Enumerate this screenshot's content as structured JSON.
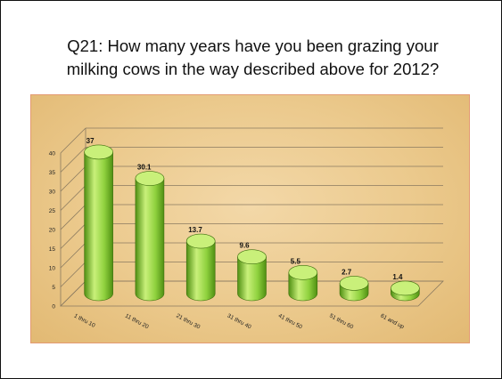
{
  "title": {
    "line1": "Q21: How many years have you been grazing your",
    "line2": "milking cows in the way described above for 2012?"
  },
  "colors": {
    "bar_light": "#c9f07a",
    "bar_mid": "#8fd13e",
    "bar_dark": "#4f8f12",
    "panel_border": "#e39a72",
    "panel_bg": "#ebc98c"
  },
  "chart_data": {
    "type": "bar",
    "style": "3d-cylinder",
    "categories": [
      "1 thru 10",
      "11 thru 20",
      "21 thru 30",
      "31 thru 40",
      "41 thru 50",
      "51 thru 60",
      "61 and up"
    ],
    "values": [
      37,
      30.1,
      13.7,
      9.6,
      5.5,
      2.7,
      1.4
    ],
    "value_labels": [
      "37",
      "30.1",
      "13.7",
      "9.6",
      "5.5",
      "2.7",
      "1.4"
    ],
    "y_ticks": [
      "0",
      "5",
      "10",
      "15",
      "20",
      "25",
      "30",
      "35",
      "40"
    ],
    "ylim": [
      0,
      40
    ],
    "grid": true,
    "legend": "none"
  }
}
